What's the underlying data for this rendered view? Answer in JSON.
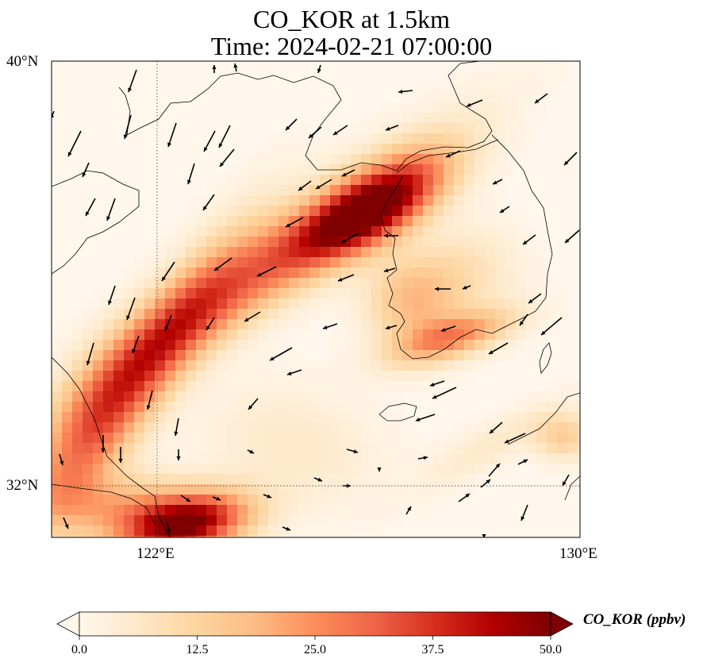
{
  "title": {
    "line1": "CO_KOR at 1.5km",
    "line2": "Time: 2024-02-21 07:00:00"
  },
  "axes": {
    "lat_ticks": [
      "40°N",
      "32°N"
    ],
    "lon_ticks": [
      "122°E",
      "130°E"
    ],
    "extent": {
      "lon": [
        120,
        130
      ],
      "lat": [
        31,
        40
      ]
    },
    "gridlines": "dotted at 122°E and 32°N"
  },
  "colorbar": {
    "label": "CO_KOR (ppbv)",
    "ticks": [
      "0.0",
      "12.5",
      "25.0",
      "37.5",
      "50.0"
    ],
    "range": [
      0,
      50
    ],
    "extend": "both",
    "colormap": "OrRd",
    "colors": [
      "#fff7ec",
      "#fee8c8",
      "#fdd49e",
      "#fdbb84",
      "#fc8d59",
      "#ef6548",
      "#d7301f",
      "#b30000",
      "#7f0000"
    ]
  },
  "field_features": [
    {
      "name": "plume-northwest-band",
      "lon": [
        120.2,
        127.0
      ],
      "lat": [
        33.0,
        37.5
      ],
      "peak_ppbv": 30
    },
    {
      "name": "hotspot-seoul-incheon",
      "lon": 126.7,
      "lat": 37.5,
      "peak_ppbv": 50
    },
    {
      "name": "hotspot-south-coast",
      "lon": 127.8,
      "lat": 34.8,
      "peak_ppbv": 30
    },
    {
      "name": "hotspot-shanghai-south",
      "lon": 122.5,
      "lat": 31.2,
      "peak_ppbv": 50
    },
    {
      "name": "hotspot-kyushu",
      "lon": 129.8,
      "lat": 33.5,
      "peak_ppbv": 20
    }
  ]
}
